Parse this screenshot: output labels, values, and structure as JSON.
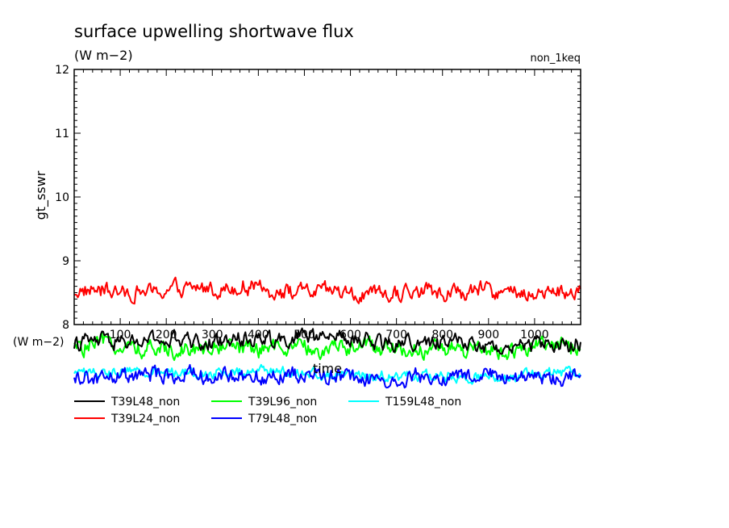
{
  "chart_data": {
    "type": "line",
    "title": "surface upwelling shortwave flux",
    "units": "(W m−2)",
    "experiment": "non_1keq",
    "ylabel": "gt_sswr",
    "xlabel": "time",
    "ylim": [
      8,
      12
    ],
    "yticks": [
      8,
      9,
      10,
      11,
      12
    ],
    "xlim": [
      0,
      1100
    ],
    "xticks": [
      100,
      200,
      300,
      400,
      500,
      600,
      700,
      800,
      900,
      1000
    ],
    "xtick_labels": [
      "100",
      "200",
      "300",
      "400",
      "500",
      "600",
      "700",
      "800",
      "900",
      "1000"
    ],
    "second_axis_units": "(W m−2)",
    "series": [
      {
        "name": "T39L24_non",
        "color": "#ff0000",
        "mean": 8.52,
        "amplitude": 0.13
      },
      {
        "name": "T39L48_non",
        "color": "#000000",
        "mean": 7.72,
        "amplitude": 0.13
      },
      {
        "name": "T39L96_non",
        "color": "#00ff00",
        "mean": 7.64,
        "amplitude": 0.14
      },
      {
        "name": "T79L48_non",
        "color": "#0000ff",
        "mean": 7.14,
        "amplitude": 0.13
      },
      {
        "name": "T159L48_non",
        "color": "#00ffff",
        "mean": 7.24,
        "amplitude": 0.09
      }
    ]
  }
}
